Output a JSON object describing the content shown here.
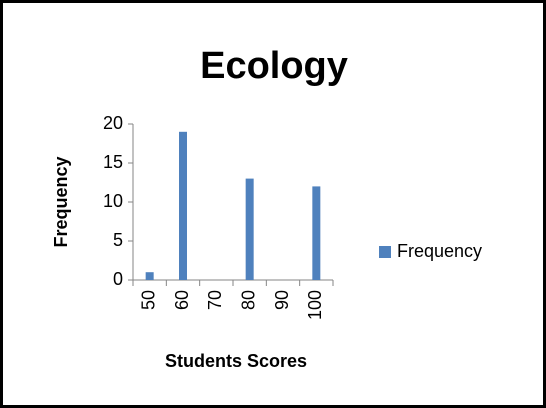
{
  "chart_data": {
    "type": "bar",
    "title": "Ecology",
    "x_label": "Students Scores",
    "y_label": "Frequency",
    "categories": [
      "50",
      "60",
      "70",
      "80",
      "90",
      "100"
    ],
    "series": [
      {
        "name": "Frequency",
        "color": "#4f81bd",
        "values": [
          1,
          19,
          0,
          13,
          0,
          12
        ]
      }
    ],
    "ylim": [
      0,
      20
    ],
    "yticks": [
      0,
      5,
      10,
      15,
      20
    ],
    "legend": "right"
  }
}
